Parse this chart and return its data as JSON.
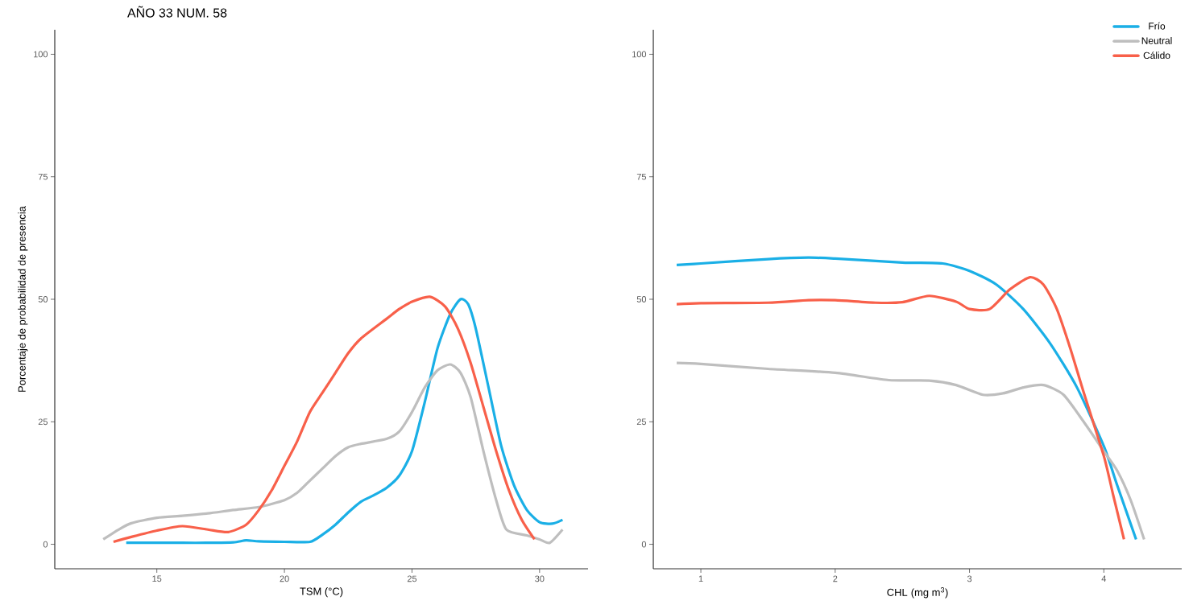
{
  "chart_data": [
    {
      "type": "line",
      "xlabel": "TSM (°C)",
      "ylabel": "Porcentaje de probabilidad de presencia",
      "annotations": [
        "AÑO 33 NUM. 58"
      ],
      "xlim": [
        11,
        31.9
      ],
      "ylim": [
        -5,
        105
      ],
      "xticks": [
        15,
        20,
        25,
        30
      ],
      "yticks": [
        0,
        25,
        50,
        75,
        100
      ],
      "marker": "none",
      "line_style": "solid",
      "grid": false,
      "legend": false,
      "series": [
        {
          "color": "#1AAFE6",
          "x": [
            13.8,
            15,
            16,
            17,
            18,
            18.5,
            19,
            20,
            21,
            21.5,
            22,
            22.5,
            23,
            23.5,
            24,
            24.5,
            25,
            25.5,
            26,
            26.5,
            26.9,
            27.2,
            27.5,
            28,
            28.5,
            29,
            29.5,
            30,
            30.5,
            30.9
          ],
          "values": [
            0.3,
            0.3,
            0.3,
            0.3,
            0.4,
            0.8,
            0.6,
            0.5,
            0.5,
            2,
            4,
            6.5,
            8.7,
            10,
            11.5,
            14,
            19,
            29,
            40,
            47,
            50,
            49,
            44,
            32,
            20,
            12,
            7,
            4.5,
            4.2,
            5
          ]
        },
        {
          "color": "#BEBEBE",
          "x": [
            12.9,
            13.5,
            14,
            15,
            16,
            17,
            18,
            19,
            20,
            20.5,
            21,
            21.5,
            22,
            22.5,
            23,
            24,
            24.5,
            25,
            25.5,
            26,
            26.5,
            26.9,
            27.3,
            27.8,
            28.3,
            28.7,
            29.5,
            30,
            30.4,
            30.9
          ],
          "values": [
            1,
            3,
            4.3,
            5.4,
            5.8,
            6.3,
            7,
            7.6,
            9,
            10.5,
            13,
            15.5,
            18,
            19.8,
            20.5,
            21.5,
            23,
            27,
            32,
            35.5,
            36.7,
            35,
            30,
            19,
            9,
            3,
            1.8,
            1,
            0.3,
            3
          ]
        },
        {
          "color": "#F8604A",
          "x": [
            13.3,
            14,
            15,
            16,
            17,
            17.8,
            18.5,
            19,
            19.5,
            20,
            20.5,
            21,
            21.5,
            22,
            22.5,
            23,
            24,
            24.5,
            25,
            25.7,
            26.3,
            26.8,
            27.3,
            27.8,
            28.3,
            28.8,
            29.3,
            29.8
          ],
          "values": [
            0.5,
            1.5,
            2.8,
            3.7,
            3,
            2.5,
            4,
            7,
            11,
            16,
            21,
            27,
            31,
            35,
            39,
            42,
            46,
            48,
            49.5,
            50.5,
            48.5,
            44,
            37,
            28,
            19,
            11,
            5,
            1
          ]
        }
      ]
    },
    {
      "type": "line",
      "xlabel": "CHL $^{}$(mg m$^{3}$)",
      "xlim": [
        0.646,
        4.58
      ],
      "ylim": [
        -5,
        105
      ],
      "xticks": [
        1,
        2,
        3,
        4
      ],
      "yticks": [
        0,
        25,
        50,
        75,
        100
      ],
      "marker": "none",
      "line_style": "solid",
      "grid": false,
      "legend": "top right",
      "series": [
        {
          "name": "Frío",
          "color": "#1AAFE6",
          "x": [
            0.82,
            1,
            1.5,
            1.8,
            2,
            2.5,
            2.8,
            3,
            3.2,
            3.4,
            3.6,
            3.8,
            4,
            4.1,
            4.24
          ],
          "values": [
            57,
            57.3,
            58.2,
            58.5,
            58.3,
            57.5,
            57.3,
            55.8,
            53,
            48,
            41,
            32,
            20,
            12,
            1
          ]
        },
        {
          "name": "Neutral",
          "color": "#BEBEBE",
          "x": [
            0.82,
            1,
            1.5,
            2,
            2.4,
            2.7,
            2.9,
            3.1,
            3.25,
            3.4,
            3.55,
            3.7,
            3.85,
            4,
            4.1,
            4.2,
            4.3
          ],
          "values": [
            37,
            36.8,
            35.8,
            35,
            33.5,
            33.4,
            32.5,
            30.5,
            30.8,
            32,
            32.5,
            30.5,
            25,
            19,
            15,
            9,
            1
          ]
        },
        {
          "name": "Cálido",
          "color": "#F8604A",
          "x": [
            0.82,
            1,
            1.5,
            1.8,
            2,
            2.3,
            2.5,
            2.7,
            2.9,
            3,
            3.15,
            3.3,
            3.45,
            3.55,
            3.65,
            3.75,
            3.85,
            4,
            4.07,
            4.15
          ],
          "values": [
            49,
            49.2,
            49.3,
            49.8,
            49.8,
            49.3,
            49.4,
            50.7,
            49.5,
            48,
            48,
            52,
            54.5,
            53,
            48,
            40,
            31,
            18,
            10,
            1
          ]
        }
      ]
    }
  ]
}
